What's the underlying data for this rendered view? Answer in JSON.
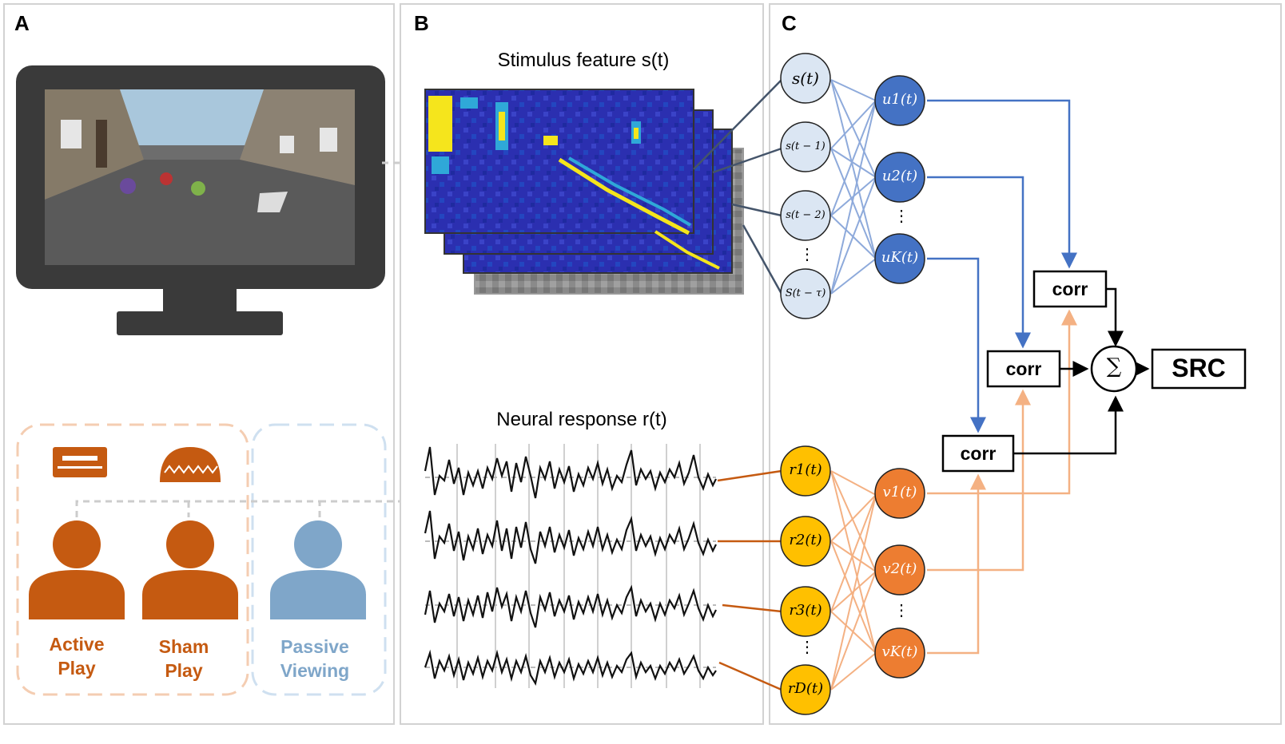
{
  "panels": {
    "a": {
      "label": "A"
    },
    "b": {
      "label": "B"
    },
    "c": {
      "label": "C"
    }
  },
  "panel_a": {
    "conditions": [
      {
        "line1": "Active",
        "line2": "Play",
        "color": "#c55a11"
      },
      {
        "line1": "Sham",
        "line2": "Play",
        "color": "#c55a11"
      },
      {
        "line1": "Passive",
        "line2": "Viewing",
        "color": "#7fa6c9"
      }
    ],
    "icons": [
      "keyboard-icon",
      "eeg-cap-icon",
      "person-icon"
    ],
    "colors": {
      "orange": "#c55a11",
      "blue": "#7fa6c9",
      "monitor": "#3a3a3a"
    }
  },
  "panel_b": {
    "stimulus_title": "Stimulus feature s(t)",
    "response_title": "Neural response r(t)",
    "colors": {
      "heat_low": "#2b2fb0",
      "heat_high": "#f5e51c",
      "eeg": "#111111"
    }
  },
  "panel_c": {
    "stimulus_nodes": [
      "s(t)",
      "s(t − 1)",
      "s(t − 2)",
      "S(t − τ)"
    ],
    "u_nodes": [
      "u1(t)",
      "u2(t)",
      "uK(t)"
    ],
    "response_nodes": [
      "r1(t)",
      "r2(t)",
      "r3(t)",
      "rD(t)"
    ],
    "v_nodes": [
      "v1(t)",
      "v2(t)",
      "vK(t)"
    ],
    "corr_label": "corr",
    "sum_symbol": "∑",
    "output_label": "SRC",
    "dots": "⋮",
    "colors": {
      "s_fill": "#dbe6f3",
      "u_fill": "#4472c4",
      "r_fill": "#ffc000",
      "v_fill": "#ed7d31",
      "blue_line": "#4472c4",
      "light_blue_line": "#8eaadb",
      "orange_line": "#f4b183",
      "dark_orange_line": "#c55a11"
    }
  }
}
